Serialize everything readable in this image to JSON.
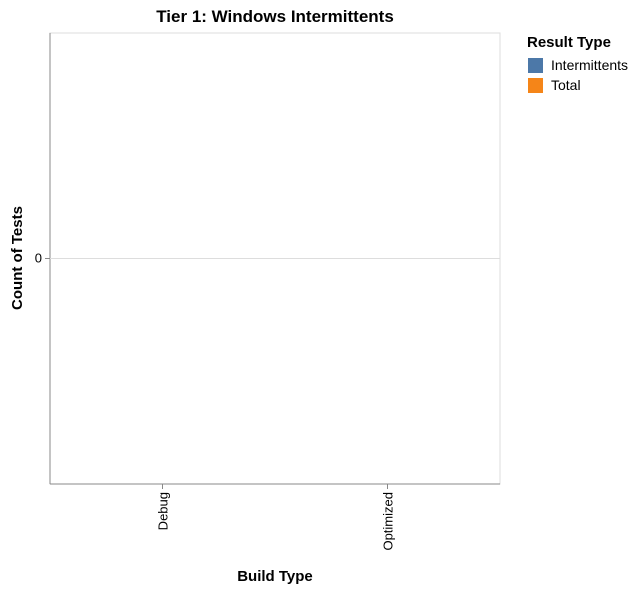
{
  "chart_data": {
    "type": "bar",
    "title": "Tier 1: Windows Intermittents",
    "x_label": "Build Type",
    "y_label": "Count of Tests",
    "legend_title": "Result Type",
    "legend": "top-right",
    "categories": [
      "Debug",
      "Optimized"
    ],
    "series": [
      {
        "name": "Intermittents",
        "color": "#4c78a8",
        "values": [
          0,
          0
        ]
      },
      {
        "name": "Total",
        "color": "#f58518",
        "values": [
          0,
          0
        ]
      }
    ],
    "ylim": [
      -1,
      1
    ],
    "yticks": [
      0
    ],
    "grid": true
  }
}
